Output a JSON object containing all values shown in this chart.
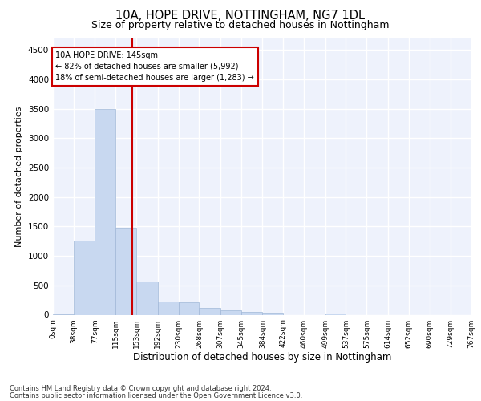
{
  "title": "10A, HOPE DRIVE, NOTTINGHAM, NG7 1DL",
  "subtitle": "Size of property relative to detached houses in Nottingham",
  "xlabel": "Distribution of detached houses by size in Nottingham",
  "ylabel": "Number of detached properties",
  "footnote1": "Contains HM Land Registry data © Crown copyright and database right 2024.",
  "footnote2": "Contains public sector information licensed under the Open Government Licence v3.0.",
  "bar_edges": [
    0,
    38,
    77,
    115,
    153,
    192,
    230,
    268,
    307,
    345,
    384,
    422,
    460,
    499,
    537,
    575,
    614,
    652,
    690,
    729,
    767
  ],
  "bar_heights": [
    10,
    1260,
    3500,
    1480,
    560,
    220,
    210,
    110,
    80,
    50,
    30,
    0,
    0,
    20,
    0,
    0,
    0,
    0,
    0,
    0
  ],
  "bar_color": "#c8d8f0",
  "bar_edgecolor": "#a0b8d8",
  "vline_x": 145,
  "vline_color": "#cc0000",
  "annotation_line1": "10A HOPE DRIVE: 145sqm",
  "annotation_line2": "← 82% of detached houses are smaller (5,992)",
  "annotation_line3": "18% of semi-detached houses are larger (1,283) →",
  "annotation_box_color": "#ffffff",
  "annotation_box_edgecolor": "#cc0000",
  "ylim": [
    0,
    4700
  ],
  "yticks": [
    0,
    500,
    1000,
    1500,
    2000,
    2500,
    3000,
    3500,
    4000,
    4500
  ],
  "background_color": "#eef2fc",
  "grid_color": "#ffffff",
  "title_fontsize": 10.5,
  "subtitle_fontsize": 9,
  "tick_label_fontsize": 6.5,
  "ylabel_fontsize": 8,
  "xlabel_fontsize": 8.5
}
